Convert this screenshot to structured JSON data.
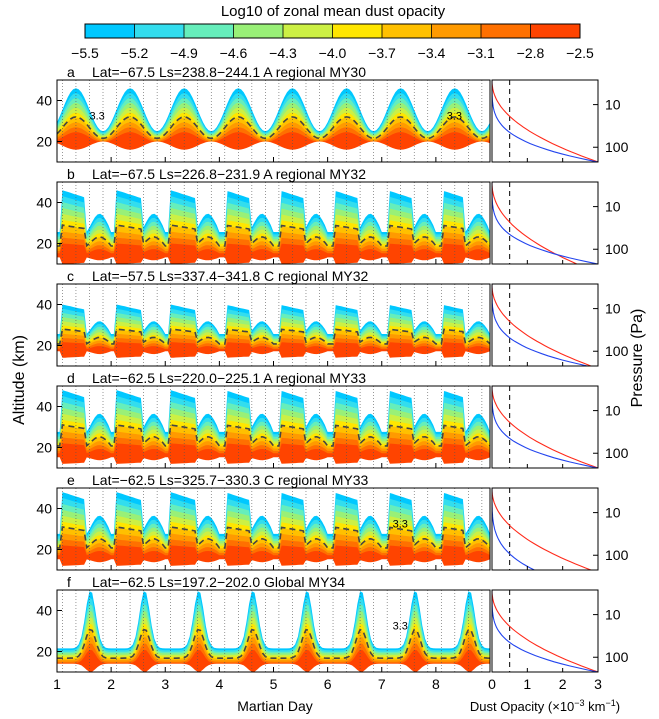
{
  "figure": {
    "colorbar": {
      "title": "Log10 of zonal mean dust opacity",
      "ticks": [
        "−5.5",
        "−5.2",
        "−4.9",
        "−4.6",
        "−4.3",
        "−4.0",
        "−3.7",
        "−3.4",
        "−3.1",
        "−2.8",
        "−2.5"
      ],
      "colors": [
        "#00c8ff",
        "#33ddee",
        "#66eebb",
        "#99f077",
        "#ccf044",
        "#ffe600",
        "#ffc000",
        "#ff9a00",
        "#ff7000",
        "#ff4400"
      ]
    },
    "y_label_left": "Altitude (km)",
    "y_label_right": "Pressure (Pa)",
    "x_label_left": "Martian Day",
    "x_label_right": "Dust Opacity (×10",
    "x_label_right_exp": "−3",
    "x_label_right_unit": " km",
    "x_label_right_unit_exp": "−1",
    "x_label_right_close": ")"
  },
  "chart_data": {
    "type": "heatmap",
    "x_range": [
      1,
      9
    ],
    "x_ticks": [
      "1",
      "2",
      "3",
      "4",
      "5",
      "6",
      "7",
      "8"
    ],
    "y_range_km": [
      10,
      50
    ],
    "y_ticks": [
      "20",
      "40"
    ],
    "pressure_ticks": [
      "10",
      "100"
    ],
    "profile_x_range": [
      0,
      3
    ],
    "profile_x_ticks": [
      "0",
      "1",
      "2",
      "3"
    ],
    "profile_series_colors": {
      "red": "#ff2a1a",
      "blue": "#2244ee"
    },
    "panels": [
      {
        "letter": "a",
        "title": "Lat=−67.5 Ls=238.8−244.1 A regional MY30",
        "contour_labels": [
          "3.3",
          "3.3"
        ],
        "style": "smooth",
        "bottom_km": 18,
        "top_km": 46,
        "blue_max": 3.0,
        "red_max": 3.0
      },
      {
        "letter": "b",
        "title": "Lat=−67.5 Ls=226.8−231.9 A regional MY32",
        "contour_labels": [],
        "style": "diurnal",
        "bottom_km": 12,
        "top_km": 46,
        "blue_max": 3.0,
        "red_max": 2.4
      },
      {
        "letter": "c",
        "title": "Lat=−57.5 Ls=337.4−341.8 C regional MY32",
        "contour_labels": [],
        "style": "diurnal",
        "bottom_km": 16,
        "top_km": 40,
        "blue_max": 2.7,
        "red_max": 2.8
      },
      {
        "letter": "d",
        "title": "Lat=−62.5 Ls=220.0−225.1 A regional MY33",
        "contour_labels": [],
        "style": "diurnal",
        "bottom_km": 14,
        "top_km": 48,
        "blue_max": 3.0,
        "red_max": 3.0
      },
      {
        "letter": "e",
        "title": "Lat=−62.5 Ls=325.7−330.3 C regional MY33",
        "contour_labels": [
          "3.3"
        ],
        "style": "diurnal",
        "bottom_km": 14,
        "top_km": 48,
        "blue_max": 1.2,
        "red_max": 2.8
      },
      {
        "letter": "f",
        "title": "Lat=−62.5 Ls=197.2−202.0 Global MY34",
        "contour_labels": [
          "3.3"
        ],
        "style": "peaks",
        "bottom_km": 12,
        "top_km": 50,
        "blue_max": 3.0,
        "red_max": 3.0
      }
    ]
  }
}
